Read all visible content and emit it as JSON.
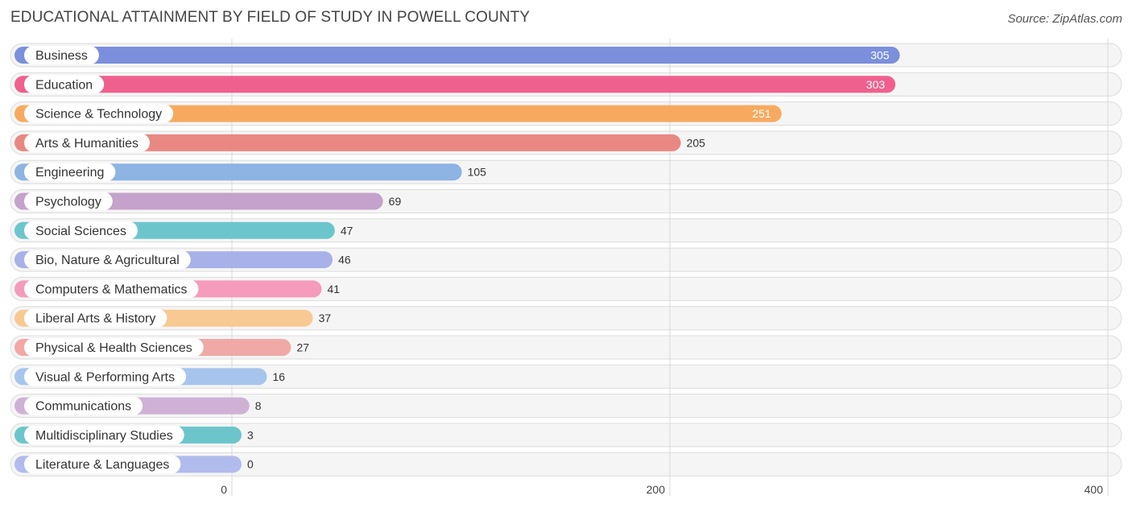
{
  "header": {
    "title": "EDUCATIONAL ATTAINMENT BY FIELD OF STUDY IN POWELL COUNTY",
    "source": "Source: ZipAtlas.com"
  },
  "chart_data": {
    "type": "bar",
    "orientation": "horizontal",
    "title": "EDUCATIONAL ATTAINMENT BY FIELD OF STUDY IN POWELL COUNTY",
    "xlabel": "",
    "ylabel": "",
    "xlim": [
      0,
      400
    ],
    "ticks": [
      0,
      200,
      400
    ],
    "tick_labels": [
      "0",
      "200",
      "400"
    ],
    "categories": [
      "Business",
      "Education",
      "Science & Technology",
      "Arts & Humanities",
      "Engineering",
      "Psychology",
      "Social Sciences",
      "Bio, Nature & Agricultural",
      "Computers & Mathematics",
      "Liberal Arts & History",
      "Physical & Health Sciences",
      "Visual & Performing Arts",
      "Communications",
      "Multidisciplinary Studies",
      "Literature & Languages"
    ],
    "values": [
      305,
      303,
      251,
      205,
      105,
      69,
      47,
      46,
      41,
      37,
      27,
      16,
      8,
      3,
      0
    ],
    "value_labels": [
      "305",
      "303",
      "251",
      "205",
      "105",
      "69",
      "47",
      "46",
      "41",
      "37",
      "27",
      "16",
      "8",
      "3",
      "0"
    ],
    "colors": [
      "#7b8fdc",
      "#f0608f",
      "#f7aa5f",
      "#e98883",
      "#8db4e3",
      "#c4a2cb",
      "#6dc5cc",
      "#a8b2e8",
      "#f59bbb",
      "#f9c994",
      "#f0a9a6",
      "#a7c5ec",
      "#cfb1d6",
      "#6dc5cc",
      "#b1bcec"
    ],
    "grid": true
  }
}
